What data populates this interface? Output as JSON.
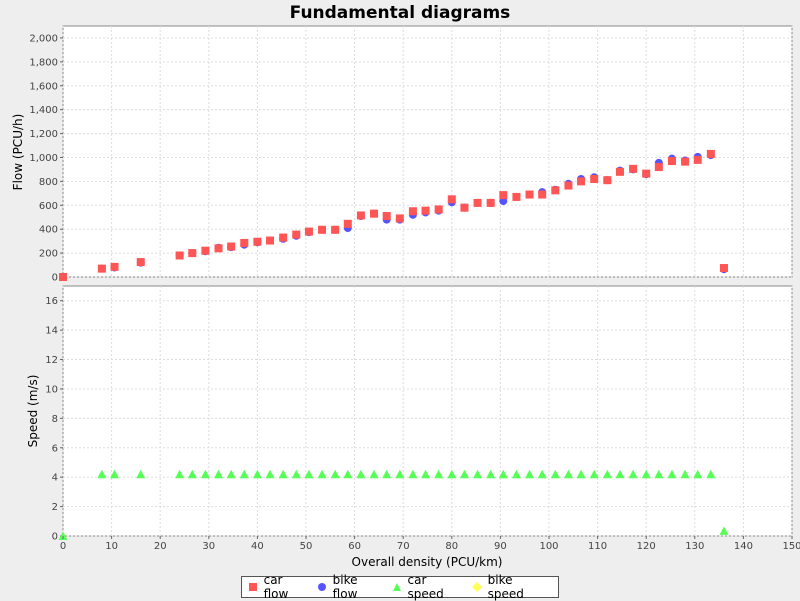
{
  "chart_data": {
    "title": "Fundamental diagrams",
    "type": "scatter",
    "xlabel": "Overall density (PCU/km)",
    "xlim": [
      0,
      150
    ],
    "xticks": [
      0,
      10,
      20,
      30,
      40,
      50,
      60,
      70,
      80,
      90,
      100,
      110,
      120,
      130,
      140,
      150
    ],
    "grid": true,
    "legend_position": "bottom",
    "colors": {
      "car_flow": "#ff5555",
      "bike_flow": "#5555ff",
      "car_speed": "#55ff55",
      "bike_speed": "#ffff55"
    },
    "x": [
      0,
      8,
      10.6,
      16,
      24,
      26.6,
      29.3,
      32,
      34.6,
      37.3,
      40,
      42.6,
      45.3,
      48,
      50.6,
      53.3,
      56,
      58.6,
      61.3,
      64,
      66.6,
      69.3,
      72,
      74.6,
      77.3,
      80,
      82.6,
      85.3,
      88,
      90.6,
      93.3,
      96,
      98.6,
      101.3,
      104,
      106.6,
      109.3,
      112,
      114.6,
      117.3,
      120,
      122.6,
      125.3,
      128,
      130.6,
      133.3,
      136
    ],
    "top_panel": {
      "ylabel": "Flow (PCU/h)",
      "ylim": [
        0,
        2100
      ],
      "yticks": [
        "0",
        "200",
        "400",
        "600",
        "800",
        "1,000",
        "1,200",
        "1,400",
        "1,600",
        "1,800",
        "2,000"
      ],
      "series": [
        {
          "name": "car flow",
          "marker": "square",
          "values": [
            0,
            70,
            85,
            125,
            180,
            200,
            220,
            240,
            255,
            285,
            295,
            305,
            330,
            355,
            380,
            395,
            395,
            445,
            515,
            530,
            510,
            490,
            550,
            555,
            565,
            650,
            580,
            620,
            620,
            685,
            670,
            690,
            690,
            725,
            765,
            800,
            820,
            810,
            880,
            905,
            865,
            920,
            970,
            965,
            980,
            1030,
            75
          ]
        },
        {
          "name": "bike flow",
          "marker": "circle",
          "values": [
            0,
            70,
            80,
            120,
            180,
            200,
            215,
            245,
            250,
            270,
            290,
            305,
            320,
            345,
            375,
            395,
            395,
            410,
            510,
            530,
            480,
            480,
            520,
            540,
            555,
            625,
            580,
            620,
            620,
            635,
            670,
            690,
            710,
            730,
            780,
            820,
            835,
            810,
            890,
            900,
            860,
            955,
            990,
            975,
            1005,
            1020,
            65
          ]
        }
      ]
    },
    "bottom_panel": {
      "ylabel": "Speed (m/s)",
      "ylim": [
        0,
        17
      ],
      "yticks": [
        "0",
        "2",
        "4",
        "6",
        "8",
        "10",
        "12",
        "14",
        "16"
      ],
      "series": [
        {
          "name": "car speed",
          "marker": "triangle",
          "values": [
            0,
            4.2,
            4.2,
            4.2,
            4.2,
            4.2,
            4.2,
            4.2,
            4.2,
            4.2,
            4.2,
            4.2,
            4.2,
            4.2,
            4.2,
            4.2,
            4.2,
            4.2,
            4.2,
            4.2,
            4.2,
            4.2,
            4.2,
            4.2,
            4.2,
            4.2,
            4.2,
            4.2,
            4.2,
            4.2,
            4.2,
            4.2,
            4.2,
            4.2,
            4.2,
            4.2,
            4.2,
            4.2,
            4.2,
            4.2,
            4.2,
            4.2,
            4.2,
            4.2,
            4.2,
            4.2,
            0.35
          ]
        },
        {
          "name": "bike speed",
          "marker": "diamond",
          "values": []
        }
      ]
    },
    "legend": [
      {
        "label": "car flow",
        "marker": "square",
        "color": "#ff5555"
      },
      {
        "label": "bike flow",
        "marker": "circle",
        "color": "#5555ff"
      },
      {
        "label": "car speed",
        "marker": "triangle",
        "color": "#55ff55"
      },
      {
        "label": "bike speed",
        "marker": "diamond",
        "color": "#ffff55"
      }
    ]
  }
}
